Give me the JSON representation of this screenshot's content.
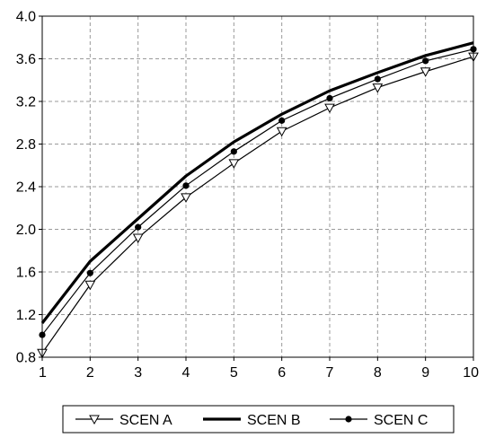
{
  "chart_data": {
    "type": "line",
    "title": "",
    "xlabel": "",
    "ylabel": "",
    "x": [
      1,
      2,
      3,
      4,
      5,
      6,
      7,
      8,
      9,
      10
    ],
    "xlim": [
      1,
      10
    ],
    "ylim": [
      0.8,
      4.0
    ],
    "x_ticks": [
      "1",
      "2",
      "3",
      "4",
      "5",
      "6",
      "7",
      "8",
      "9",
      "10"
    ],
    "y_ticks": [
      "0.8",
      "1.2",
      "1.6",
      "2.0",
      "2.4",
      "2.8",
      "3.2",
      "3.6",
      "4.0"
    ],
    "grid": true,
    "legend_position": "bottom",
    "series": [
      {
        "name": "SCEN A",
        "marker": "triangle-down-open",
        "line": "thin",
        "color": "#000000",
        "values": [
          0.84,
          1.48,
          1.92,
          2.3,
          2.62,
          2.92,
          3.14,
          3.33,
          3.48,
          3.62
        ]
      },
      {
        "name": "SCEN B",
        "marker": "none",
        "line": "thick",
        "color": "#000000",
        "values": [
          1.12,
          1.7,
          2.1,
          2.5,
          2.82,
          3.08,
          3.3,
          3.47,
          3.63,
          3.75
        ]
      },
      {
        "name": "SCEN C",
        "marker": "circle-filled",
        "line": "thin",
        "color": "#000000",
        "values": [
          1.01,
          1.59,
          2.02,
          2.41,
          2.73,
          3.02,
          3.23,
          3.41,
          3.58,
          3.69
        ]
      }
    ]
  }
}
